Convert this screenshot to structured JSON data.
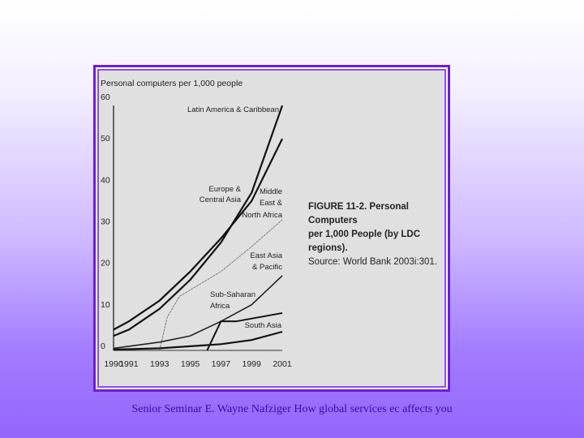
{
  "slide": {
    "footer": "Senior Seminar E. Wayne Nafziger How global services ec affects you"
  },
  "figure": {
    "caption_line1": "FIGURE 11-2.  Personal Computers",
    "caption_line2": "per 1,000 People (by LDC regions).",
    "caption_source": "Source:  World Bank 2003i:301."
  },
  "chart_data": {
    "type": "line",
    "title": "Personal computers per 1,000 people",
    "xlabel": "",
    "ylabel": "Personal computers per 1,000 people",
    "x": [
      1990,
      1991,
      1993,
      1995,
      1997,
      1999,
      2001
    ],
    "x_tick_labels": [
      "1990",
      "1991",
      "1993",
      "1995",
      "1997",
      "1999",
      "2001"
    ],
    "y_tick_labels": [
      "0",
      "10",
      "20",
      "30",
      "40",
      "50",
      "60"
    ],
    "ylim": [
      0,
      60
    ],
    "grid": false,
    "series": [
      {
        "name": "Latin America & Caribbean",
        "values": [
          3.5,
          5,
          10,
          17,
          26,
          38,
          59
        ]
      },
      {
        "name": "Europe & Central Asia",
        "values": [
          5,
          7,
          12,
          19,
          27,
          36,
          51
        ]
      },
      {
        "name": "Middle East & North Africa",
        "values": [
          0,
          0,
          0,
          13,
          19,
          25,
          32
        ]
      },
      {
        "name": "East Asia & Pacific",
        "values": [
          0.5,
          1,
          2,
          3.5,
          7,
          11,
          18
        ]
      },
      {
        "name": "Sub-Saharan Africa",
        "values": [
          0,
          0,
          0,
          0,
          7,
          7.5,
          9
        ]
      },
      {
        "name": "South Asia",
        "values": [
          0.2,
          0.3,
          0.5,
          1,
          1.5,
          2.5,
          4.5
        ]
      }
    ],
    "annotations": [
      "Latin America & Caribbean",
      "Europe & Central Asia",
      "Middle East & North Africa",
      "East Asia & Pacific",
      "Sub-Saharan Africa",
      "South Asia"
    ]
  }
}
